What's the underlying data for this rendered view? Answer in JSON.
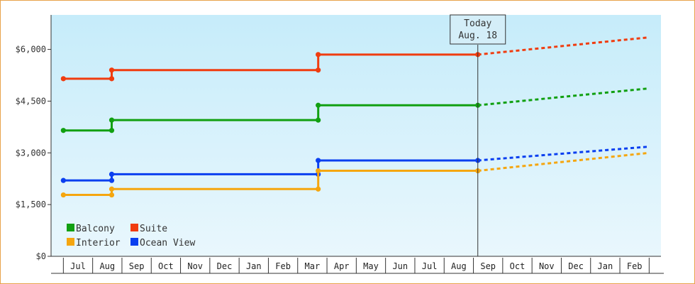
{
  "chart_data": {
    "type": "line",
    "title": "",
    "xlabel": "",
    "ylabel": "",
    "ylim": [
      0,
      7000
    ],
    "y_ticks": [
      0,
      1500,
      3000,
      4500,
      6000
    ],
    "y_tick_labels": [
      "$0",
      "$1,500",
      "$3,000",
      "$4,500",
      "$6,000"
    ],
    "x_categories": [
      "Jul",
      "Aug",
      "Sep",
      "Oct",
      "Nov",
      "Dec",
      "Jan",
      "Feb",
      "Mar",
      "Apr",
      "May",
      "Jun",
      "Jul",
      "Aug",
      "Sep",
      "Oct",
      "Nov",
      "Dec",
      "Jan",
      "Feb"
    ],
    "grid": false,
    "legend_position": "bottom-left",
    "background_gradient": [
      "#c6ecfa",
      "#e9f7fd"
    ],
    "today_marker": {
      "line1": "Today",
      "line2": "Aug. 18",
      "month_index": 13.65
    },
    "series": [
      {
        "name": "Suite",
        "color": "#f03c0f",
        "steps": [
          [
            -0.5,
            5150
          ],
          [
            1.15,
            5150
          ],
          [
            1.15,
            5400
          ],
          [
            8.2,
            5400
          ],
          [
            8.2,
            5850
          ],
          [
            13.65,
            5850
          ]
        ],
        "forecast": [
          [
            13.65,
            5850
          ],
          [
            19.5,
            6350
          ]
        ]
      },
      {
        "name": "Balcony",
        "color": "#11a011",
        "steps": [
          [
            -0.5,
            3650
          ],
          [
            1.15,
            3650
          ],
          [
            1.15,
            3950
          ],
          [
            8.2,
            3950
          ],
          [
            8.2,
            4380
          ],
          [
            13.65,
            4380
          ]
        ],
        "forecast": [
          [
            13.65,
            4380
          ],
          [
            19.5,
            4870
          ]
        ]
      },
      {
        "name": "Ocean View",
        "color": "#0a3ff0",
        "steps": [
          [
            -0.5,
            2200
          ],
          [
            1.15,
            2200
          ],
          [
            1.15,
            2380
          ],
          [
            8.2,
            2380
          ],
          [
            8.2,
            2780
          ],
          [
            13.65,
            2780
          ]
        ],
        "forecast": [
          [
            13.65,
            2780
          ],
          [
            19.5,
            3180
          ]
        ]
      },
      {
        "name": "Interior",
        "color": "#f5a60f",
        "steps": [
          [
            -0.5,
            1780
          ],
          [
            1.15,
            1780
          ],
          [
            1.15,
            1950
          ],
          [
            8.2,
            1950
          ],
          [
            8.2,
            2480
          ],
          [
            13.65,
            2480
          ]
        ],
        "forecast": [
          [
            13.65,
            2480
          ],
          [
            19.5,
            3000
          ]
        ]
      }
    ],
    "legend": [
      {
        "name": "Balcony",
        "color": "#11a011"
      },
      {
        "name": "Suite",
        "color": "#f03c0f"
      },
      {
        "name": "Interior",
        "color": "#f5a60f"
      },
      {
        "name": "Ocean View",
        "color": "#0a3ff0"
      }
    ]
  }
}
